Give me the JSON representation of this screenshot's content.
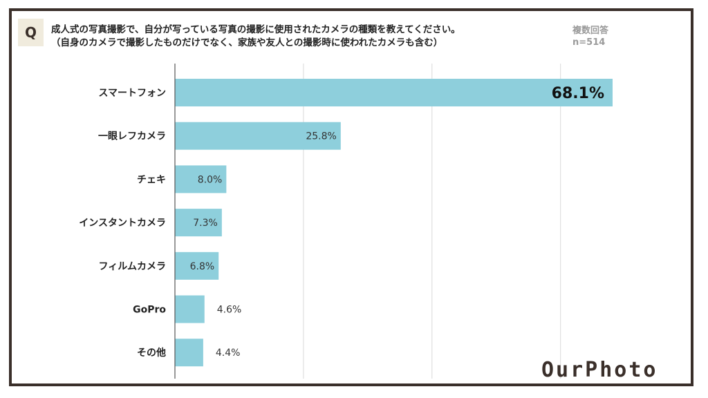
{
  "header": {
    "q_label": "Q",
    "question_line1": "成人式の写真撮影で、自分が写っている写真の撮影に使用されたカメラの種類を教えてください。",
    "question_line2": "（自身のカメラで撮影したものだけでなく、家族や友人との撮影時に使われたカメラも含む）",
    "answer_type": "複数回答",
    "sample_size": "n=514"
  },
  "brand": {
    "logo": "OurPhoto"
  },
  "chart_data": {
    "type": "bar",
    "orientation": "horizontal",
    "categories": [
      "スマートフォン",
      "一眼レフカメラ",
      "チェキ",
      "インスタントカメラ",
      "フィルムカメラ",
      "GoPro",
      "その他"
    ],
    "values": [
      68.1,
      25.8,
      8.0,
      7.3,
      6.8,
      4.6,
      4.4
    ],
    "value_labels": [
      "68.1%",
      "25.8%",
      "8.0%",
      "7.3%",
      "6.8%",
      "4.6%",
      "4.4%"
    ],
    "xlim": [
      0,
      80
    ],
    "grid": true,
    "bar_color": "#8ecfdc",
    "highlight_index": 0
  }
}
